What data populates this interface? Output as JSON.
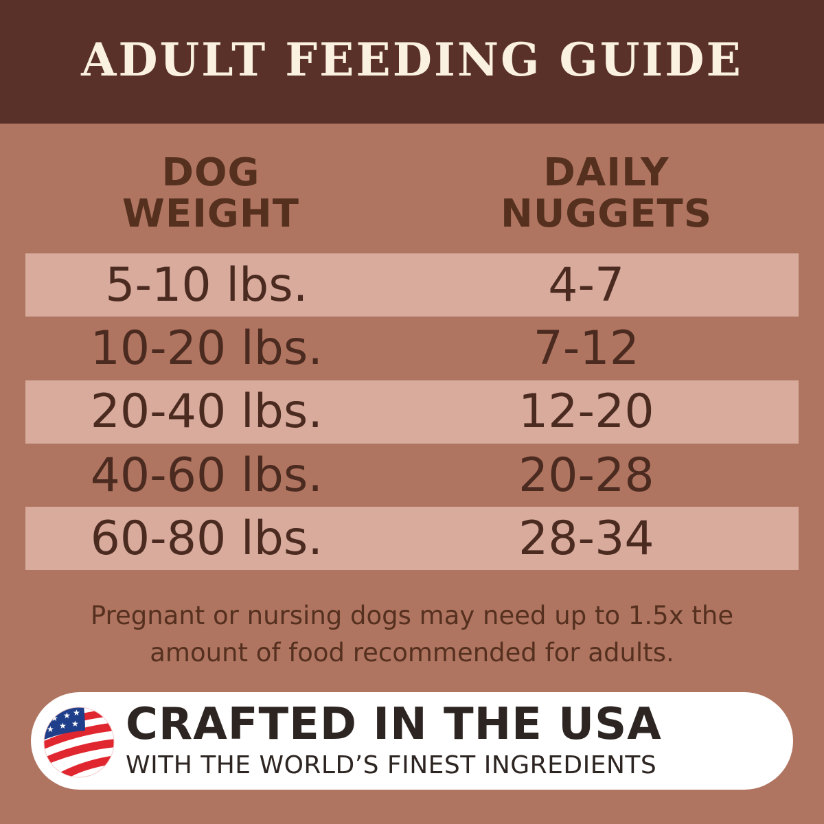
{
  "title": "ADULT FEEDING GUIDE",
  "columns": {
    "weight": [
      "DOG",
      "WEIGHT"
    ],
    "nuggets": [
      "DAILY",
      "NUGGETS"
    ]
  },
  "rows": [
    {
      "weight": "5-10 lbs.",
      "nuggets": "4-7"
    },
    {
      "weight": "10-20 lbs.",
      "nuggets": "7-12"
    },
    {
      "weight": "20-40 lbs.",
      "nuggets": "12-20"
    },
    {
      "weight": "40-60 lbs.",
      "nuggets": "20-28"
    },
    {
      "weight": "60-80 lbs.",
      "nuggets": "28-34"
    }
  ],
  "note": [
    "Pregnant or nursing dogs may need up to 1.5x the",
    "amount of food recommended for adults."
  ],
  "badge": {
    "icon": "us-flag-icon",
    "headline": "CRAFTED IN THE USA",
    "subline": "WITH THE WORLD’S FINEST INGREDIENTS"
  },
  "colors": {
    "header": "#5a3128",
    "background": "#b07561",
    "row_highlight": "#d8ab9d",
    "title_text": "#fbf1e1"
  }
}
